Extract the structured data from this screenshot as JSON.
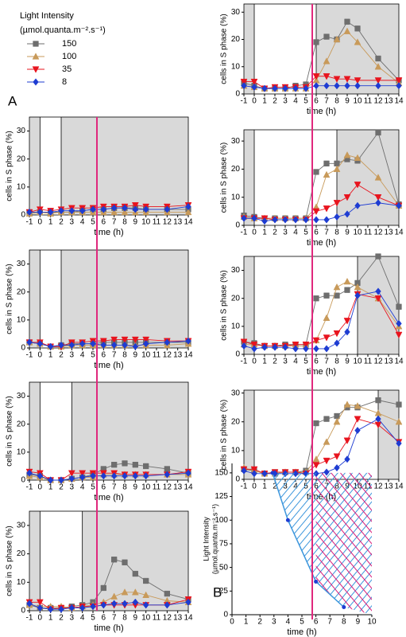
{
  "legend_title": [
    "Light Intensity",
    "(µmol.quanta.m⁻².s⁻¹)"
  ],
  "chart_data": [
    {
      "type": "line",
      "panel_label": "A",
      "xlabel": "time (h)",
      "ylabel": "cells in S phase (%)",
      "x": [
        -1,
        0,
        1,
        2,
        3,
        4,
        5,
        6,
        7,
        8,
        9,
        10,
        12,
        14
      ],
      "xlim": [
        -1,
        14
      ],
      "xticks": [
        -1,
        0,
        1,
        2,
        3,
        4,
        5,
        6,
        7,
        8,
        9,
        10,
        11,
        12,
        13,
        14
      ],
      "ylim": [
        0,
        35
      ],
      "yticks": [
        0,
        10,
        20,
        30
      ],
      "light": [
        0,
        2
      ],
      "series": [
        {
          "name": "150",
          "color": "#6e6e6e",
          "marker": "square",
          "values": [
            1,
            1,
            1,
            1,
            1,
            1.5,
            2,
            2,
            2.5,
            2.5,
            2.5,
            2,
            2,
            2
          ]
        },
        {
          "name": "100",
          "color": "#c89a5a",
          "marker": "triangle-up",
          "values": [
            0.5,
            1,
            0.5,
            1,
            1,
            1,
            1,
            1,
            1,
            1,
            1,
            1,
            1,
            1
          ]
        },
        {
          "name": "35",
          "color": "#e8141e",
          "marker": "triangle-down",
          "values": [
            1,
            2,
            1.5,
            2,
            2.5,
            2.5,
            2.5,
            3,
            3,
            3,
            3.5,
            3,
            3,
            3.5
          ]
        },
        {
          "name": "8",
          "color": "#1e3cd2",
          "marker": "diamond",
          "values": [
            1,
            1,
            1,
            1.5,
            1.5,
            1.5,
            2,
            2,
            2.5,
            2.5,
            2,
            2,
            2,
            3
          ]
        }
      ]
    },
    {
      "type": "line",
      "xlabel": "time (h)",
      "ylabel": "cells in S phase (%)",
      "x": [
        -1,
        0,
        1,
        2,
        3,
        4,
        5,
        6,
        7,
        8,
        9,
        10,
        12,
        14
      ],
      "xlim": [
        -1,
        14
      ],
      "xticks": [
        -1,
        0,
        1,
        2,
        3,
        4,
        5,
        6,
        7,
        8,
        9,
        10,
        11,
        12,
        13,
        14
      ],
      "ylim": [
        0,
        35
      ],
      "yticks": [
        0,
        10,
        20,
        30
      ],
      "light": [
        0,
        2
      ],
      "series": [
        {
          "color": "#6e6e6e",
          "marker": "square",
          "values": [
            2,
            1.5,
            0.5,
            1,
            1.5,
            1.5,
            1.5,
            2,
            2,
            2,
            2,
            2,
            2,
            2
          ]
        },
        {
          "color": "#c89a5a",
          "marker": "triangle-up",
          "values": [
            2,
            1.5,
            0.5,
            0.5,
            1,
            1,
            1,
            1,
            1,
            1,
            1,
            1,
            1,
            1.5
          ]
        },
        {
          "color": "#e8141e",
          "marker": "triangle-down",
          "values": [
            2,
            2,
            0.5,
            0.5,
            2,
            2,
            2.5,
            2.5,
            3,
            3,
            3,
            3,
            2.5,
            2.5
          ]
        },
        {
          "color": "#1e3cd2",
          "marker": "diamond",
          "values": [
            2,
            1.5,
            0.5,
            1,
            1,
            1.5,
            1.5,
            1,
            1,
            1,
            0.5,
            1.5,
            2,
            2.5
          ]
        }
      ]
    },
    {
      "type": "line",
      "xlabel": "time (h)",
      "ylabel": "cells in S phase (%)",
      "x": [
        -1,
        0,
        1,
        2,
        3,
        4,
        5,
        6,
        7,
        8,
        9,
        10,
        12,
        14
      ],
      "xlim": [
        -1,
        14
      ],
      "xticks": [
        -1,
        0,
        1,
        2,
        3,
        4,
        5,
        6,
        7,
        8,
        9,
        10,
        11,
        12,
        13,
        14
      ],
      "ylim": [
        0,
        35
      ],
      "yticks": [
        0,
        10,
        20,
        30
      ],
      "light": [
        0,
        3
      ],
      "series": [
        {
          "color": "#6e6e6e",
          "marker": "square",
          "values": [
            2,
            1.5,
            0,
            0,
            0.5,
            1,
            2,
            4,
            5.5,
            6,
            5.5,
            5,
            4,
            2.5
          ]
        },
        {
          "color": "#c89a5a",
          "marker": "triangle-up",
          "values": [
            1.5,
            1,
            0,
            0,
            0.5,
            1,
            1,
            2,
            2,
            2,
            2,
            2,
            2,
            2
          ]
        },
        {
          "color": "#e8141e",
          "marker": "triangle-down",
          "values": [
            3,
            2.5,
            0,
            0,
            2.5,
            2.5,
            2.5,
            2.5,
            2.5,
            2,
            2,
            2,
            2,
            3
          ]
        },
        {
          "color": "#1e3cd2",
          "marker": "diamond",
          "values": [
            2.5,
            1.5,
            0,
            0,
            0.5,
            1,
            1.5,
            1.5,
            1.5,
            1.5,
            1.5,
            1.5,
            2,
            2.5
          ]
        }
      ]
    },
    {
      "type": "line",
      "xlabel": "time (h)",
      "ylabel": "cells in S phase (%)",
      "x": [
        -1,
        0,
        1,
        2,
        3,
        4,
        5,
        6,
        7,
        8,
        9,
        10,
        12,
        14
      ],
      "xlim": [
        -1,
        14
      ],
      "xticks": [
        -1,
        0,
        1,
        2,
        3,
        4,
        5,
        6,
        7,
        8,
        9,
        10,
        11,
        12,
        13,
        14
      ],
      "ylim": [
        0,
        35
      ],
      "yticks": [
        0,
        10,
        20,
        30
      ],
      "light": [
        0,
        4
      ],
      "series": [
        {
          "color": "#6e6e6e",
          "marker": "square",
          "values": [
            2,
            1,
            1,
            1,
            1.5,
            2,
            3,
            8,
            18,
            17,
            13,
            10.5,
            6,
            4
          ]
        },
        {
          "color": "#c89a5a",
          "marker": "triangle-up",
          "values": [
            2,
            1.5,
            1.5,
            1.5,
            1,
            1.5,
            2,
            3,
            5,
            6.5,
            6.5,
            5.5,
            3.5,
            3
          ]
        },
        {
          "color": "#e8141e",
          "marker": "triangle-down",
          "values": [
            3,
            3,
            0.5,
            1,
            1,
            1.5,
            1.5,
            2,
            2,
            2,
            2,
            2,
            2,
            4
          ]
        },
        {
          "color": "#1e3cd2",
          "marker": "diamond",
          "values": [
            2.5,
            1,
            0.5,
            0.5,
            1,
            1,
            1.5,
            2,
            2.5,
            2.5,
            3,
            2,
            2,
            3
          ]
        }
      ]
    },
    {
      "type": "line",
      "xlabel": "time (h)",
      "ylabel": "cells in S phase (%)",
      "x": [
        -1,
        0,
        1,
        2,
        3,
        4,
        5,
        6,
        7,
        8,
        9,
        10,
        12,
        14
      ],
      "xlim": [
        -1,
        14
      ],
      "xticks": [
        -1,
        0,
        1,
        2,
        3,
        4,
        5,
        6,
        7,
        8,
        9,
        10,
        11,
        12,
        13,
        14
      ],
      "ylim": [
        0,
        33
      ],
      "yticks": [
        0,
        10,
        20,
        30
      ],
      "light": [
        0,
        6
      ],
      "series": [
        {
          "color": "#6e6e6e",
          "marker": "square",
          "values": [
            4,
            3,
            2,
            2,
            2,
            3,
            3.5,
            19,
            21,
            20,
            26.5,
            24,
            13,
            5
          ]
        },
        {
          "color": "#c89a5a",
          "marker": "triangle-up",
          "values": [
            3,
            2.5,
            2,
            2,
            2,
            2,
            2,
            5,
            12,
            20,
            23,
            19,
            10,
            4
          ]
        },
        {
          "color": "#e8141e",
          "marker": "triangle-down",
          "values": [
            4.5,
            4.5,
            2,
            2.5,
            2.5,
            2.5,
            2.5,
            6.5,
            6.5,
            5.5,
            5.5,
            5,
            5,
            5
          ]
        },
        {
          "color": "#1e3cd2",
          "marker": "diamond",
          "values": [
            3,
            2.5,
            2,
            2,
            2,
            2,
            2,
            3,
            3,
            3,
            3,
            3,
            3,
            3
          ]
        }
      ]
    },
    {
      "type": "line",
      "xlabel": "time (h)",
      "ylabel": "cells in S phase (%)",
      "x": [
        -1,
        0,
        1,
        2,
        3,
        4,
        5,
        6,
        7,
        8,
        9,
        10,
        12,
        14
      ],
      "xlim": [
        -1,
        14
      ],
      "xticks": [
        -1,
        0,
        1,
        2,
        3,
        4,
        5,
        6,
        7,
        8,
        9,
        10,
        11,
        12,
        13,
        14
      ],
      "ylim": [
        0,
        34
      ],
      "yticks": [
        0,
        10,
        20,
        30
      ],
      "light": [
        0,
        8
      ],
      "series": [
        {
          "color": "#6e6e6e",
          "marker": "square",
          "values": [
            3.5,
            3,
            2.5,
            2.5,
            2.5,
            2.5,
            2.5,
            19,
            22,
            22,
            23.5,
            23,
            33,
            7.5
          ]
        },
        {
          "color": "#c89a5a",
          "marker": "triangle-up",
          "values": [
            3,
            2.5,
            2.5,
            2.5,
            2.5,
            2.5,
            2.5,
            6.5,
            18,
            20,
            25,
            24,
            17,
            7
          ]
        },
        {
          "color": "#e8141e",
          "marker": "triangle-down",
          "values": [
            2.5,
            2.5,
            2.5,
            2,
            2,
            2,
            2,
            5,
            6,
            8,
            10,
            14.5,
            10,
            7
          ]
        },
        {
          "color": "#1e3cd2",
          "marker": "diamond",
          "values": [
            2.5,
            2.5,
            1.5,
            2,
            2,
            2,
            2,
            2,
            2,
            3,
            4,
            7,
            8,
            7
          ]
        }
      ]
    },
    {
      "type": "line",
      "xlabel": "time (h)",
      "ylabel": "cells in S phase (%)",
      "x": [
        -1,
        0,
        1,
        2,
        3,
        4,
        5,
        6,
        7,
        8,
        9,
        10,
        12,
        14
      ],
      "xlim": [
        -1,
        14
      ],
      "xticks": [
        -1,
        0,
        1,
        2,
        3,
        4,
        5,
        6,
        7,
        8,
        9,
        10,
        11,
        12,
        13,
        14
      ],
      "ylim": [
        0,
        35
      ],
      "yticks": [
        0,
        10,
        20,
        30
      ],
      "light": [
        0,
        10
      ],
      "series": [
        {
          "color": "#6e6e6e",
          "marker": "square",
          "values": [
            4.5,
            4,
            3,
            3,
            3.5,
            3.5,
            3.5,
            20,
            21,
            21,
            23,
            25.5,
            35,
            17
          ]
        },
        {
          "color": "#c89a5a",
          "marker": "triangle-up",
          "values": [
            3.5,
            3.5,
            3,
            3,
            3,
            3,
            3,
            5,
            13,
            24,
            26,
            24,
            20,
            10
          ]
        },
        {
          "color": "#e8141e",
          "marker": "triangle-down",
          "values": [
            4.5,
            3.5,
            3,
            3,
            3,
            3.5,
            3.5,
            5,
            6,
            7.5,
            12,
            21.5,
            20,
            7
          ]
        },
        {
          "color": "#1e3cd2",
          "marker": "diamond",
          "values": [
            3,
            2,
            2.5,
            2.5,
            2.5,
            2,
            2,
            2,
            2,
            4,
            8,
            21,
            22.5,
            11
          ]
        }
      ]
    },
    {
      "type": "line",
      "xlabel": "time (h)",
      "ylabel": "cells in S phase (%)",
      "x": [
        -1,
        0,
        1,
        2,
        3,
        4,
        5,
        6,
        7,
        8,
        9,
        10,
        12,
        14
      ],
      "xlim": [
        -1,
        14
      ],
      "xticks": [
        -1,
        0,
        1,
        2,
        3,
        4,
        5,
        6,
        7,
        8,
        9,
        10,
        11,
        12,
        13,
        14
      ],
      "ylim": [
        0,
        31
      ],
      "yticks": [
        0,
        10,
        20,
        30
      ],
      "light": [
        0,
        12
      ],
      "series": [
        {
          "color": "#6e6e6e",
          "marker": "square",
          "values": [
            3.5,
            3,
            2,
            2.5,
            2.5,
            2.5,
            3,
            19.5,
            21,
            22,
            25,
            25,
            27.5,
            26
          ]
        },
        {
          "color": "#c89a5a",
          "marker": "triangle-up",
          "values": [
            4,
            3,
            2,
            2,
            2.5,
            2.5,
            2.5,
            7,
            13,
            20,
            26,
            25.5,
            23,
            20
          ]
        },
        {
          "color": "#e8141e",
          "marker": "triangle-down",
          "values": [
            3.5,
            3.5,
            2,
            2.5,
            2.5,
            2.5,
            2,
            5,
            6.5,
            8,
            13.5,
            21,
            19,
            13
          ]
        },
        {
          "color": "#1e3cd2",
          "marker": "diamond",
          "values": [
            3,
            2,
            2,
            2,
            2,
            2,
            2,
            2,
            2.5,
            4,
            7,
            17,
            21,
            12.5
          ]
        }
      ]
    },
    {
      "type": "area",
      "panel_label": "B",
      "xlabel": "time (h)",
      "ylabel": [
        "Light Intensity",
        "(µmol.quanta.m⁻².s⁻¹)"
      ],
      "x": [
        2.9,
        4,
        6,
        8
      ],
      "values": [
        150,
        100,
        35,
        8
      ],
      "color": "#3c96dc",
      "xlim": [
        0,
        10
      ],
      "xticks": [
        0,
        1,
        2,
        3,
        4,
        5,
        6,
        7,
        8,
        9,
        10
      ],
      "ylim": [
        0,
        160
      ],
      "yticks": [
        0,
        25,
        50,
        75,
        100,
        125,
        150
      ]
    }
  ]
}
